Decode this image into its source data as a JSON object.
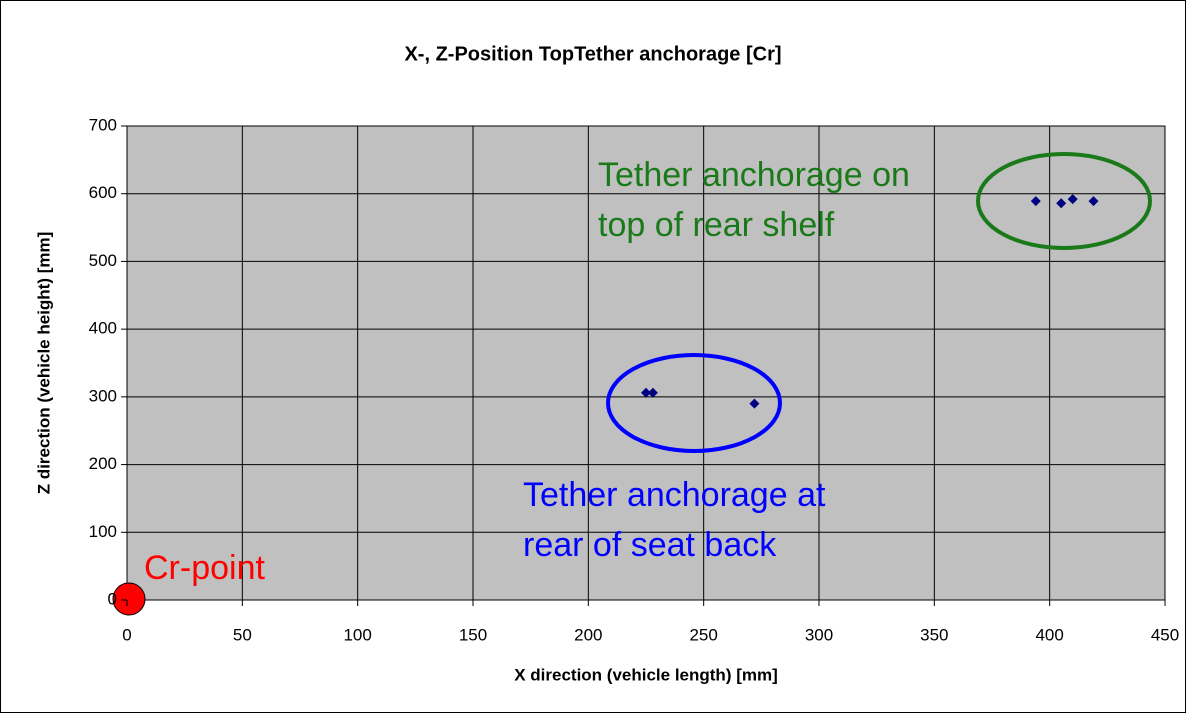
{
  "chart_data": {
    "type": "scatter",
    "title": "X-, Z-Position TopTether anchorage [Cr]",
    "x_label": "X direction (vehicle length) [mm]",
    "y_label": "Z direction (vehicle height) [mm]",
    "series": [
      {
        "name": "TopTether anchorage",
        "color": "#000080",
        "x": [
          225,
          228,
          272,
          394,
          405,
          410,
          419
        ],
        "values": [
          306,
          306,
          290,
          589,
          586,
          592,
          589
        ]
      }
    ],
    "xlim": [
      0,
      450
    ],
    "xticks": [
      0,
      50,
      100,
      150,
      200,
      250,
      300,
      350,
      400,
      450
    ],
    "ylim": [
      0,
      700
    ],
    "yticks": [
      0,
      100,
      200,
      300,
      400,
      500,
      600,
      700
    ],
    "grid": true,
    "annotations": [
      {
        "lines": [
          "Tether anchorage on",
          "top of rear shelf"
        ],
        "color": "#1a7a1a"
      },
      {
        "lines": [
          "Tether anchorage at",
          "rear of seat back"
        ],
        "color": "#0000ff"
      },
      {
        "lines": [
          "Cr-point"
        ],
        "color": "#ff0000"
      }
    ]
  }
}
